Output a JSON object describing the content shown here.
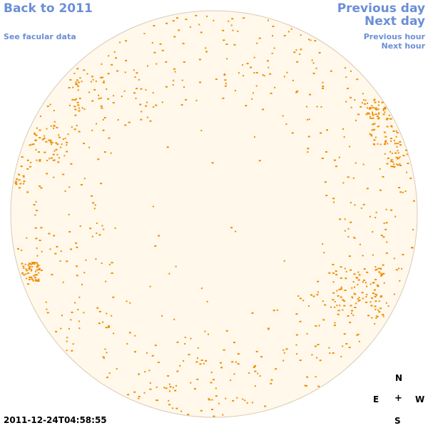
{
  "nav": {
    "back": "Back to 2011",
    "facular": "See facular data",
    "previous_day": "Previous day",
    "next_day": "Next day",
    "previous_hour": "Previous hour",
    "next_hour": "Next hour"
  },
  "compass": {
    "north": "N",
    "east": "E",
    "center": "+",
    "west": "W",
    "south": "S"
  },
  "timestamp": "2011-12-24T04:58:55",
  "colors": {
    "disk_fill": "#fff8eb",
    "disk_stroke": "#d8cbb5",
    "facula": "#f08c00",
    "link": "#6b8fd6"
  }
}
